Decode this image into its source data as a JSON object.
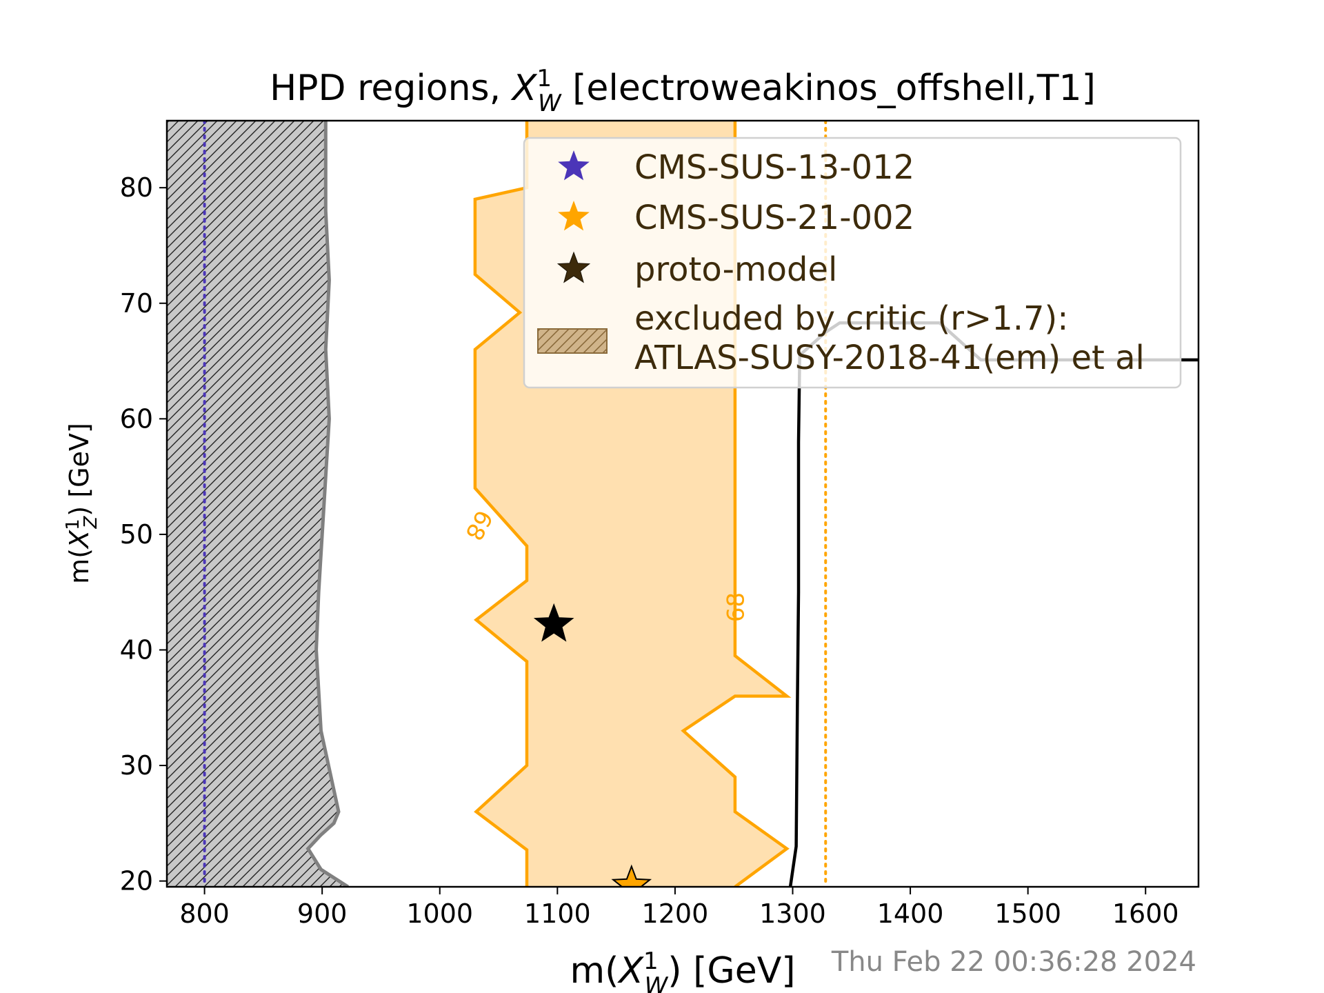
{
  "chart_data": {
    "type": "contour",
    "title_prefix": "HPD regions, ",
    "title_var": "X",
    "title_var_sub": "W",
    "title_var_sup": "1",
    "title_suffix": " [electroweakinos_offshell,T1]",
    "xlabel_prefix": "m(",
    "xlabel_var": "X",
    "xlabel_sub": "W",
    "xlabel_sup": "1",
    "xlabel_suffix": ") [GeV]",
    "ylabel_prefix": "m(",
    "ylabel_var": "X",
    "ylabel_sub": "Z",
    "ylabel_sup": "1",
    "ylabel_suffix": ") [GeV]",
    "xlim": [
      768,
      1645
    ],
    "ylim": [
      19.5,
      85.8
    ],
    "xticks": [
      800,
      900,
      1000,
      1100,
      1200,
      1300,
      1400,
      1500,
      1600
    ],
    "yticks": [
      20,
      30,
      40,
      50,
      60,
      70,
      80
    ],
    "grid": false,
    "legend_position": "upper right",
    "legend": [
      {
        "label": "CMS-SUS-13-012",
        "marker": "star",
        "color": "#4b35b8"
      },
      {
        "label": "CMS-SUS-21-002",
        "marker": "star",
        "color": "#ffa500"
      },
      {
        "label": "proto-model",
        "marker": "star",
        "color": "#3d2b0b"
      },
      {
        "label": "excluded by critic (r>1.7):",
        "label2": "ATLAS-SUSY-2018-41(em) et al",
        "marker": "hatch",
        "color": "#c8a878"
      }
    ],
    "excluded_region": {
      "color": "#c8c8c8",
      "edge_color": "#808080",
      "boundary": [
        [
          903,
          85.8
        ],
        [
          903,
          78
        ],
        [
          906,
          72
        ],
        [
          903,
          66
        ],
        [
          906,
          60
        ],
        [
          903,
          55
        ],
        [
          900,
          50
        ],
        [
          897,
          45
        ],
        [
          895,
          40
        ],
        [
          899,
          33
        ],
        [
          914,
          26
        ],
        [
          910,
          25
        ],
        [
          899,
          24
        ],
        [
          888,
          22.8
        ],
        [
          899,
          21
        ],
        [
          922,
          19.5
        ]
      ]
    },
    "hpd_region": {
      "label": "68",
      "fill_color": "#ffe0b0",
      "line_color": "#ffa500",
      "left_boundary": [
        [
          1074,
          85.8
        ],
        [
          1074,
          80
        ],
        [
          1030,
          79
        ],
        [
          1030,
          72.5
        ],
        [
          1068,
          69.2
        ],
        [
          1030,
          66
        ],
        [
          1030,
          54
        ],
        [
          1074,
          49
        ],
        [
          1074,
          46
        ],
        [
          1031,
          42.6
        ],
        [
          1074,
          39
        ],
        [
          1074,
          30
        ],
        [
          1031,
          26
        ],
        [
          1074,
          22.7
        ],
        [
          1074,
          19.5
        ]
      ],
      "right_boundary": [
        [
          1251,
          85.8
        ],
        [
          1251,
          39.5
        ],
        [
          1295,
          36
        ],
        [
          1251,
          36
        ],
        [
          1207,
          33
        ],
        [
          1251,
          29
        ],
        [
          1251,
          26
        ],
        [
          1295,
          22.8
        ],
        [
          1251,
          19.5
        ]
      ]
    },
    "exclusion_line": {
      "color": "#000000",
      "points": [
        [
          1298,
          19.5
        ],
        [
          1303,
          23
        ],
        [
          1304,
          35
        ],
        [
          1305,
          45
        ],
        [
          1305,
          58
        ],
        [
          1306,
          65.5
        ],
        [
          1328,
          67.5
        ],
        [
          1340,
          68.3
        ],
        [
          1425,
          68.3
        ],
        [
          1460,
          65.1
        ],
        [
          1645,
          65.1
        ]
      ]
    },
    "ref_lines": [
      {
        "x": 800,
        "color": "#4b35b8",
        "style": "dotted"
      },
      {
        "x": 1328,
        "color": "#ffa500",
        "style": "dotted"
      }
    ],
    "markers": [
      {
        "name": "proto-model",
        "x": 1097,
        "y": 42.2,
        "color": "#000000"
      },
      {
        "name": "CMS-SUS-21-002",
        "x": 1163,
        "y": 19.6,
        "color": "#ffa500"
      }
    ],
    "contour_labels": [
      {
        "text": "68",
        "x": 1033,
        "y": 50.8,
        "rotation": -62
      },
      {
        "text": "68",
        "x": 1252,
        "y": 43.7,
        "rotation": 90
      }
    ]
  },
  "timestamp": "Thu Feb 22 00:36:28 2024"
}
